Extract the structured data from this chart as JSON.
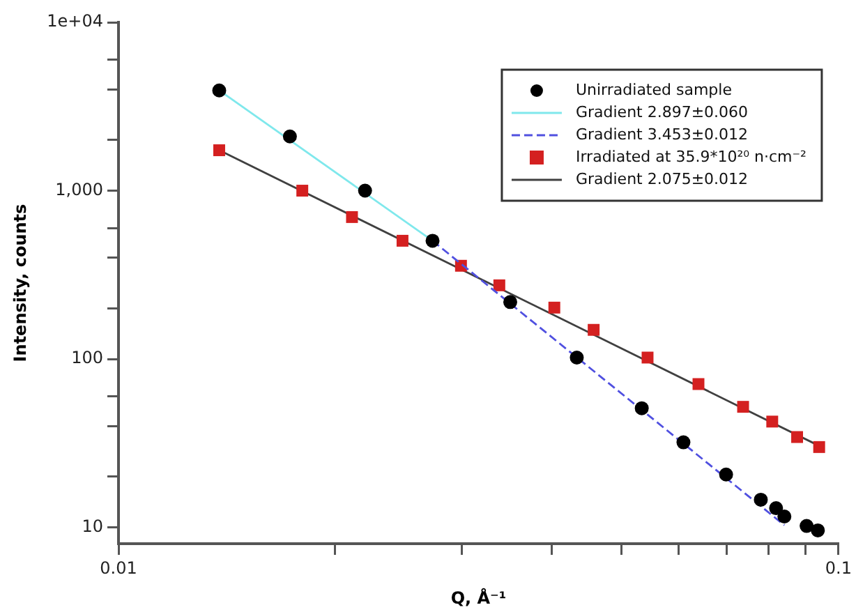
{
  "chart_data": {
    "type": "scatter",
    "xlabel": "Q, Å⁻¹",
    "ylabel": "Intensity, counts",
    "log": "xy",
    "grid": false,
    "legend": "top right",
    "xlim": [
      0.01,
      0.1
    ],
    "xticks": [
      0.01,
      {
        "value": 0.02,
        "label": null
      },
      {
        "value": 0.03,
        "label": null
      },
      {
        "value": 0.04,
        "label": null
      },
      {
        "value": 0.05,
        "label": null
      },
      {
        "value": 0.06,
        "label": null
      },
      {
        "value": 0.07,
        "label": null
      },
      {
        "value": 0.08,
        "label": null
      },
      {
        "value": 0.09,
        "label": null
      },
      0.1
    ],
    "ylim": [
      8,
      10000
    ],
    "yticks": [
      10,
      {
        "value": 20,
        "label": null
      },
      {
        "value": 40,
        "label": null
      },
      {
        "value": 60,
        "label": null
      },
      100,
      {
        "value": 200,
        "label": null
      },
      {
        "value": 400,
        "label": null
      },
      {
        "value": 600,
        "label": null
      },
      {
        "value": 1000,
        "label": "1,000"
      },
      {
        "value": 2000,
        "label": null
      },
      {
        "value": 4000,
        "label": null
      },
      {
        "value": 6000,
        "label": null
      },
      {
        "value": 10000,
        "label": "1e+04"
      }
    ],
    "series": [
      {
        "name": "Unirradiated sample",
        "marker": "circle",
        "color": "#000000",
        "x": [
          0.0138,
          0.0173,
          0.022,
          0.0273,
          0.035,
          0.0433,
          0.0533,
          0.0609,
          0.0698,
          0.078,
          0.0819,
          0.0841,
          0.0903,
          0.0936
        ],
        "values": [
          3940,
          2100,
          1000,
          504,
          218,
          102,
          51,
          32,
          20.6,
          14.6,
          13,
          11.6,
          10.2,
          9.6
        ]
      },
      {
        "name": "Gradient 2.897±0.060",
        "type": "line",
        "color": "#7fe8ec",
        "x": [
          0.0138,
          0.0273
        ],
        "values": [
          3940,
          504
        ]
      },
      {
        "name": "Gradient 3.453±0.012",
        "type": "line",
        "line_style": "dashed",
        "color": "#5050e0",
        "x": [
          0.0273,
          0.0841
        ],
        "values": [
          504,
          10.3
        ]
      },
      {
        "name": "Irradiated at 35.9*10²⁰ n·cm⁻²",
        "marker": "square",
        "color": "#d42020",
        "x": [
          0.0138,
          0.018,
          0.0211,
          0.0248,
          0.0299,
          0.0338,
          0.0403,
          0.0457,
          0.0543,
          0.0639,
          0.0737,
          0.0809,
          0.0876,
          0.094
        ],
        "values": [
          1738,
          1000,
          697,
          504,
          358,
          274,
          202,
          149,
          102,
          71,
          52,
          42.5,
          34.4,
          30
        ]
      },
      {
        "name": "Gradient 2.075±0.012",
        "type": "line",
        "color": "#404040",
        "x": [
          0.0138,
          0.094
        ],
        "values": [
          1738,
          30.5
        ]
      }
    ]
  }
}
